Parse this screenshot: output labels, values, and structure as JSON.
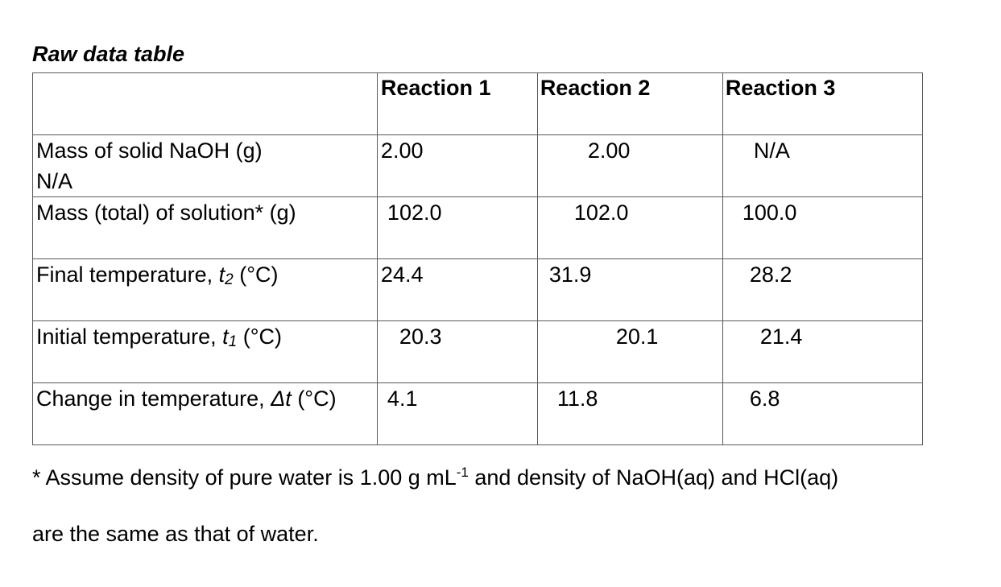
{
  "title": "Raw data table",
  "headers": [
    "",
    "Reaction 1",
    "Reaction 2",
    "Reaction 3"
  ],
  "rows": [
    {
      "label_line1": "Mass of solid NaOH (g)",
      "label_line2": "N/A",
      "values": [
        "2.00",
        "2.00",
        "N/A"
      ]
    },
    {
      "label": "Mass (total) of solution* (g)",
      "values": [
        "102.0",
        "102.0",
        "100.0"
      ]
    },
    {
      "label_prefix": "Final temperature, ",
      "label_symbol": "t",
      "label_sub": "2",
      "label_suffix": " (°C)",
      "values": [
        "24.4",
        "31.9",
        "28.2"
      ]
    },
    {
      "label_prefix": "Initial temperature, ",
      "label_symbol": "t",
      "label_sub": "1",
      "label_suffix": " (°C)",
      "values": [
        "20.3",
        "20.1",
        "21.4"
      ]
    },
    {
      "label_prefix": "Change in temperature, ",
      "label_symbol": "Δt",
      "label_suffix": " (°C)",
      "values": [
        "4.1",
        "11.8",
        "6.8"
      ]
    }
  ],
  "footnote": {
    "line1_before_sup": "* Assume density of pure water is 1.00 g mL",
    "line1_sup": "-1",
    "line1_after_sup": " and density of NaOH(aq) and HCl(aq)",
    "line2": "are the same as that of water."
  }
}
